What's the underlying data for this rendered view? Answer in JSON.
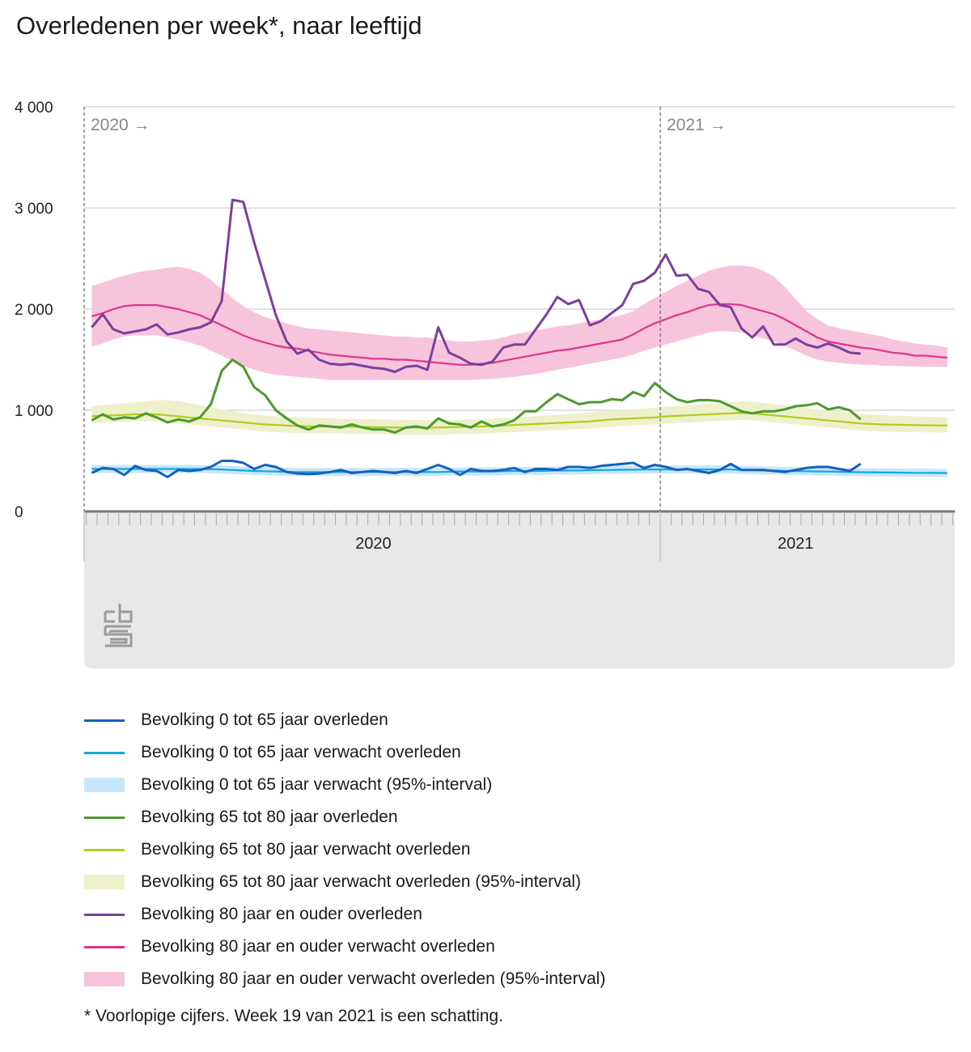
{
  "title": "Overledenen per week*, naar leeftijd",
  "footnote": "* Voorlopige cijfers. Week 19 van 2021 is een schatting.",
  "logo": "cbs",
  "colors": {
    "young_obs": "#1560bd",
    "young_exp": "#12a8df",
    "young_band": "#c8e6fa",
    "mid_obs": "#4b9a2d",
    "mid_exp": "#b1cc1d",
    "mid_band": "#eef0cc",
    "old_obs": "#7b3f9e",
    "old_exp": "#e0338a",
    "old_band": "#f7c4dc"
  },
  "chart_data": {
    "type": "line",
    "title": "Overledenen per week*, naar leeftijd",
    "xlabel": "",
    "ylabel": "",
    "ylim": [
      0,
      4000
    ],
    "yticks": [
      0,
      1000,
      2000,
      3000,
      4000
    ],
    "ytick_labels": [
      "0",
      "1 000",
      "2 000",
      "3 000",
      "4 000"
    ],
    "x_unit": "week",
    "xlim": [
      1,
      72
    ],
    "year_markers": [
      {
        "week": 1,
        "label": "2020 →"
      },
      {
        "week": 54,
        "label": "2021 →"
      }
    ],
    "axis_years": [
      {
        "label": "2020",
        "center_week": 27
      },
      {
        "label": "2021",
        "center_week": 66
      }
    ],
    "grid": true,
    "legend_position": "bottom",
    "series": [
      {
        "name": "Bevolking 0 tot 65 jaar overleden",
        "kind": "line",
        "color_key": "young_obs",
        "values": [
          380,
          430,
          420,
          360,
          450,
          410,
          400,
          340,
          410,
          400,
          410,
          440,
          500,
          500,
          480,
          420,
          460,
          440,
          390,
          375,
          370,
          375,
          390,
          410,
          380,
          390,
          400,
          390,
          380,
          400,
          380,
          420,
          460,
          420,
          360,
          420,
          400,
          400,
          410,
          430,
          390,
          420,
          420,
          410,
          440,
          440,
          430,
          450,
          460,
          470,
          480,
          430,
          460,
          440,
          410,
          420,
          400,
          380,
          410,
          470,
          410,
          410,
          410,
          400,
          390,
          410,
          430,
          440,
          440,
          420,
          400,
          470
        ]
      },
      {
        "name": "Bevolking 0 tot 65 jaar verwacht overleden",
        "kind": "line",
        "color_key": "young_exp",
        "values": [
          420,
          420,
          420,
          420,
          420,
          420,
          420,
          420,
          420,
          420,
          420,
          418,
          415,
          410,
          405,
          400,
          398,
          395,
          392,
          390,
          390,
          390,
          390,
          390,
          390,
          390,
          390,
          390,
          390,
          390,
          390,
          390,
          390,
          392,
          395,
          395,
          395,
          395,
          398,
          400,
          400,
          400,
          402,
          405,
          405,
          405,
          408,
          410,
          410,
          412,
          412,
          415,
          415,
          415,
          415,
          415,
          415,
          415,
          415,
          415,
          410,
          410,
          405,
          405,
          400,
          400,
          398,
          395,
          395,
          392,
          390,
          388,
          387,
          385,
          385,
          383,
          382,
          382,
          381,
          380
        ]
      },
      {
        "name": "Bevolking 0 tot 65 jaar verwacht (95%-interval)",
        "kind": "band",
        "color_key": "young_band",
        "lower": [
          380,
          380,
          380,
          380,
          380,
          380,
          380,
          380,
          380,
          380,
          380,
          378,
          375,
          370,
          365,
          360,
          358,
          355,
          352,
          350,
          350,
          350,
          350,
          350,
          350,
          350,
          350,
          350,
          350,
          350,
          350,
          350,
          350,
          352,
          355,
          355,
          355,
          355,
          358,
          360,
          360,
          360,
          362,
          365,
          365,
          365,
          368,
          370,
          370,
          372,
          372,
          375,
          375,
          375,
          375,
          375,
          375,
          375,
          375,
          375,
          370,
          370,
          365,
          365,
          360,
          360,
          358,
          355,
          355,
          352,
          350,
          348,
          347,
          345,
          345,
          343,
          342,
          342,
          341,
          340
        ],
        "upper": [
          460,
          460,
          460,
          460,
          460,
          460,
          460,
          460,
          460,
          460,
          460,
          458,
          455,
          450,
          445,
          440,
          438,
          435,
          432,
          430,
          430,
          430,
          430,
          430,
          430,
          430,
          430,
          430,
          430,
          430,
          430,
          430,
          430,
          432,
          435,
          435,
          435,
          435,
          438,
          440,
          440,
          440,
          442,
          445,
          445,
          445,
          448,
          450,
          450,
          452,
          452,
          455,
          455,
          455,
          455,
          455,
          455,
          455,
          455,
          455,
          450,
          450,
          445,
          445,
          440,
          440,
          438,
          435,
          435,
          432,
          430,
          428,
          427,
          425,
          425,
          423,
          422,
          422,
          421,
          420
        ]
      },
      {
        "name": "Bevolking 65 tot 80 jaar overleden",
        "kind": "line",
        "color_key": "mid_obs",
        "values": [
          900,
          960,
          910,
          930,
          920,
          970,
          930,
          880,
          910,
          890,
          930,
          1060,
          1390,
          1500,
          1430,
          1230,
          1150,
          1000,
          920,
          850,
          810,
          850,
          840,
          830,
          860,
          830,
          810,
          810,
          780,
          830,
          840,
          820,
          920,
          870,
          860,
          830,
          890,
          840,
          860,
          900,
          990,
          990,
          1080,
          1160,
          1110,
          1060,
          1080,
          1080,
          1110,
          1100,
          1180,
          1140,
          1270,
          1180,
          1110,
          1080,
          1100,
          1100,
          1090,
          1040,
          990,
          970,
          990,
          990,
          1010,
          1040,
          1050,
          1070,
          1010,
          1030,
          1000,
          910
        ]
      },
      {
        "name": "Bevolking 65 tot 80 jaar verwacht overleden",
        "kind": "line",
        "color_key": "mid_exp",
        "values": [
          940,
          950,
          950,
          955,
          960,
          960,
          960,
          950,
          940,
          930,
          920,
          910,
          900,
          890,
          880,
          870,
          860,
          855,
          850,
          845,
          842,
          840,
          840,
          840,
          838,
          836,
          834,
          832,
          830,
          830,
          830,
          830,
          830,
          832,
          835,
          838,
          840,
          845,
          850,
          855,
          860,
          865,
          870,
          875,
          880,
          885,
          890,
          900,
          910,
          915,
          920,
          925,
          930,
          940,
          945,
          950,
          955,
          960,
          965,
          970,
          975,
          970,
          960,
          950,
          940,
          930,
          920,
          910,
          900,
          890,
          880,
          870,
          865,
          860,
          858,
          856,
          854,
          852,
          851,
          850
        ]
      },
      {
        "name": "Bevolking 65 tot 80 jaar verwacht overleden (95%-interval)",
        "kind": "band",
        "color_key": "mid_band",
        "lower": [
          870,
          880,
          880,
          885,
          890,
          890,
          890,
          880,
          870,
          860,
          850,
          840,
          830,
          820,
          810,
          800,
          790,
          785,
          780,
          775,
          772,
          770,
          770,
          770,
          768,
          766,
          764,
          762,
          760,
          760,
          760,
          760,
          760,
          762,
          765,
          768,
          770,
          775,
          780,
          785,
          790,
          795,
          800,
          805,
          810,
          815,
          820,
          830,
          840,
          845,
          850,
          855,
          860,
          870,
          875,
          880,
          885,
          890,
          895,
          900,
          905,
          900,
          890,
          880,
          870,
          860,
          850,
          840,
          830,
          820,
          810,
          800,
          795,
          790,
          788,
          786,
          784,
          782,
          781,
          780
        ],
        "upper": [
          1040,
          1050,
          1060,
          1070,
          1080,
          1090,
          1100,
          1100,
          1090,
          1070,
          1050,
          1030,
          1010,
          990,
          975,
          960,
          948,
          940,
          935,
          930,
          926,
          922,
          920,
          918,
          916,
          914,
          912,
          910,
          908,
          906,
          904,
          902,
          902,
          904,
          906,
          910,
          913,
          918,
          924,
          930,
          936,
          942,
          948,
          955,
          962,
          970,
          978,
          988,
          998,
          1005,
          1012,
          1018,
          1025,
          1035,
          1040,
          1048,
          1056,
          1064,
          1072,
          1080,
          1088,
          1084,
          1072,
          1060,
          1048,
          1036,
          1024,
          1012,
          1000,
          988,
          976,
          964,
          958,
          952,
          948,
          944,
          940,
          937,
          934,
          932
        ]
      },
      {
        "name": "Bevolking 80 jaar en ouder overleden",
        "kind": "line",
        "color_key": "old_obs",
        "values": [
          1820,
          1950,
          1800,
          1760,
          1780,
          1800,
          1850,
          1750,
          1770,
          1800,
          1820,
          1870,
          2080,
          3080,
          3060,
          2660,
          2300,
          1940,
          1680,
          1560,
          1600,
          1500,
          1460,
          1450,
          1460,
          1440,
          1420,
          1410,
          1380,
          1430,
          1440,
          1400,
          1820,
          1570,
          1520,
          1460,
          1450,
          1480,
          1620,
          1650,
          1650,
          1800,
          1950,
          2120,
          2050,
          2090,
          1840,
          1880,
          1960,
          2040,
          2250,
          2280,
          2360,
          2540,
          2330,
          2340,
          2200,
          2170,
          2040,
          2020,
          1810,
          1720,
          1830,
          1650,
          1650,
          1710,
          1650,
          1620,
          1660,
          1620,
          1570,
          1560
        ]
      },
      {
        "name": "Bevolking 80 jaar en ouder verwacht overleden",
        "kind": "line",
        "color_key": "old_exp",
        "values": [
          1930,
          1960,
          2000,
          2030,
          2040,
          2040,
          2040,
          2020,
          2000,
          1970,
          1940,
          1890,
          1840,
          1790,
          1740,
          1700,
          1670,
          1640,
          1620,
          1610,
          1590,
          1570,
          1550,
          1540,
          1530,
          1520,
          1510,
          1510,
          1500,
          1500,
          1490,
          1480,
          1470,
          1460,
          1450,
          1450,
          1460,
          1470,
          1490,
          1510,
          1530,
          1550,
          1570,
          1590,
          1600,
          1620,
          1640,
          1660,
          1680,
          1700,
          1750,
          1810,
          1860,
          1900,
          1940,
          1970,
          2010,
          2040,
          2050,
          2050,
          2040,
          2010,
          1980,
          1950,
          1900,
          1840,
          1780,
          1720,
          1680,
          1660,
          1640,
          1620,
          1610,
          1590,
          1570,
          1560,
          1540,
          1540,
          1530,
          1520
        ]
      },
      {
        "name": "Bevolking 80 jaar en ouder verwacht overleden (95%-interval)",
        "kind": "band",
        "color_key": "old_band",
        "lower": [
          1630,
          1660,
          1700,
          1730,
          1740,
          1740,
          1740,
          1720,
          1700,
          1670,
          1640,
          1590,
          1540,
          1490,
          1440,
          1400,
          1370,
          1350,
          1340,
          1330,
          1320,
          1310,
          1300,
          1300,
          1300,
          1300,
          1300,
          1300,
          1300,
          1300,
          1300,
          1300,
          1300,
          1300,
          1300,
          1300,
          1305,
          1310,
          1320,
          1330,
          1345,
          1360,
          1380,
          1400,
          1420,
          1440,
          1460,
          1480,
          1500,
          1520,
          1550,
          1590,
          1620,
          1650,
          1680,
          1710,
          1740,
          1770,
          1780,
          1780,
          1770,
          1740,
          1710,
          1680,
          1640,
          1590,
          1540,
          1500,
          1480,
          1470,
          1460,
          1450,
          1450,
          1440,
          1440,
          1435,
          1432,
          1430,
          1430,
          1430
        ],
        "upper": [
          2230,
          2260,
          2300,
          2330,
          2360,
          2380,
          2390,
          2410,
          2420,
          2400,
          2360,
          2290,
          2200,
          2110,
          2030,
          1970,
          1920,
          1890,
          1860,
          1830,
          1810,
          1800,
          1790,
          1780,
          1770,
          1760,
          1750,
          1740,
          1730,
          1730,
          1720,
          1720,
          1700,
          1690,
          1680,
          1680,
          1690,
          1700,
          1720,
          1750,
          1770,
          1790,
          1810,
          1830,
          1840,
          1860,
          1880,
          1900,
          1920,
          1940,
          1980,
          2050,
          2110,
          2170,
          2230,
          2280,
          2330,
          2380,
          2410,
          2430,
          2430,
          2420,
          2380,
          2320,
          2220,
          2100,
          1980,
          1900,
          1840,
          1810,
          1790,
          1770,
          1750,
          1730,
          1700,
          1680,
          1660,
          1650,
          1640,
          1620
        ]
      }
    ]
  }
}
